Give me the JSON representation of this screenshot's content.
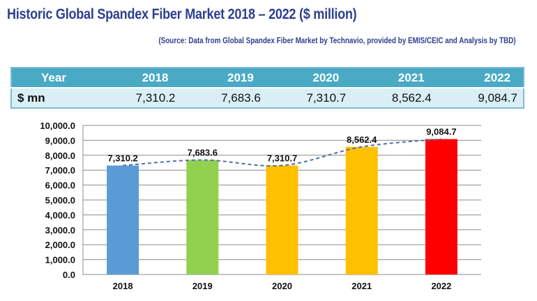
{
  "header": {
    "title": "Historic Global Spandex Fiber Market 2018 – 2022 ($ million)",
    "source": "(Source: Data from Global Spandex Fiber Market by Technavio, provided by EMIS/CEIC and Analysis by TBD)"
  },
  "table": {
    "header_label": "Year",
    "row_label": "$ mn",
    "columns": [
      {
        "year": "2018",
        "value": "7,310.2"
      },
      {
        "year": "2019",
        "value": "7,683.6"
      },
      {
        "year": "2020",
        "value": "7,310.7"
      },
      {
        "year": "2021",
        "value": "8,562.4"
      },
      {
        "year": "2022",
        "value": "9,084.7"
      }
    ],
    "colors": {
      "header_bg": "#4aaac6",
      "row_bg": "#d9eef5",
      "border": "#7fbcd0"
    }
  },
  "chart_data": {
    "type": "bar",
    "title": "",
    "xlabel": "",
    "ylabel": "",
    "categories": [
      "2018",
      "2019",
      "2020",
      "2021",
      "2022"
    ],
    "values": [
      7310.2,
      7683.6,
      7310.7,
      8562.4,
      9084.7
    ],
    "data_labels": [
      "7,310.2",
      "7,683.6",
      "7,310.7",
      "8,562.4",
      "9,084.7"
    ],
    "bar_colors": [
      "#5b9bd5",
      "#92d050",
      "#ffc000",
      "#ffc000",
      "#ff0000"
    ],
    "ylim": [
      0,
      10000
    ],
    "yticks": [
      0,
      1000,
      2000,
      3000,
      4000,
      5000,
      6000,
      7000,
      8000,
      9000,
      10000
    ],
    "ytick_labels": [
      "0.0",
      "1,000.0",
      "2,000.0",
      "3,000.0",
      "4,000.0",
      "5,000.0",
      "6,000.0",
      "7,000.0",
      "8,000.0",
      "9,000.0",
      "10,000.0"
    ],
    "grid": true,
    "legend": "none",
    "trendline": {
      "type": "smoothed-dashed",
      "color": "#4f6fa8",
      "follows": "values"
    }
  }
}
